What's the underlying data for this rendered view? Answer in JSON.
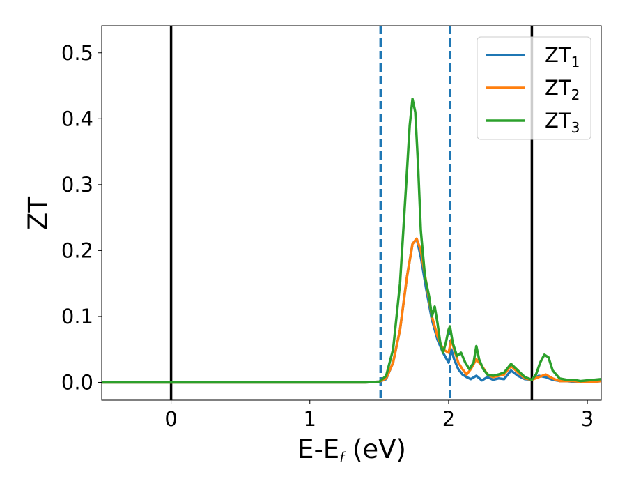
{
  "chart_data": {
    "type": "line",
    "xlabel": "E-E",
    "xlabel_subscript": "f",
    "xlabel_unit": " (eV)",
    "ylabel": "ZT",
    "xlim": [
      -0.5,
      3.1
    ],
    "ylim": [
      -0.027,
      0.541
    ],
    "xticks": [
      0,
      1,
      2,
      3
    ],
    "xtick_labels": [
      "0",
      "1",
      "2",
      "3"
    ],
    "yticks": [
      0.0,
      0.1,
      0.2,
      0.3,
      0.4,
      0.5
    ],
    "ytick_labels": [
      "0.0",
      "0.1",
      "0.2",
      "0.3",
      "0.4",
      "0.5"
    ],
    "grid": false,
    "legend_position": "top-right",
    "vlines": [
      {
        "x": 0.0,
        "style": "solid",
        "color": "#000000"
      },
      {
        "x": 2.6,
        "style": "solid",
        "color": "#000000"
      },
      {
        "x": 1.51,
        "style": "dashed",
        "color": "#1f77b4"
      },
      {
        "x": 2.01,
        "style": "dashed",
        "color": "#1f77b4"
      }
    ],
    "series": [
      {
        "name": "ZT",
        "name_subscript": "1",
        "color": "#1f77b4",
        "x": [
          -0.5,
          1.4,
          1.5,
          1.55,
          1.6,
          1.65,
          1.7,
          1.74,
          1.77,
          1.8,
          1.84,
          1.88,
          1.92,
          1.96,
          2.0,
          2.02,
          2.04,
          2.07,
          2.1,
          2.13,
          2.16,
          2.2,
          2.24,
          2.28,
          2.32,
          2.36,
          2.4,
          2.45,
          2.5,
          2.55,
          2.6,
          2.65,
          2.7,
          2.75,
          2.8,
          2.85,
          2.9,
          2.95,
          3.0,
          3.05,
          3.1
        ],
        "y": [
          0.0,
          0.0,
          0.001,
          0.005,
          0.03,
          0.08,
          0.16,
          0.21,
          0.218,
          0.19,
          0.14,
          0.095,
          0.065,
          0.045,
          0.03,
          0.05,
          0.035,
          0.02,
          0.012,
          0.008,
          0.005,
          0.01,
          0.003,
          0.008,
          0.004,
          0.006,
          0.005,
          0.018,
          0.01,
          0.005,
          0.004,
          0.01,
          0.008,
          0.004,
          0.002,
          0.002,
          0.001,
          0.001,
          0.001,
          0.001,
          0.002
        ]
      },
      {
        "name": "ZT",
        "name_subscript": "2",
        "color": "#ff7f0e",
        "x": [
          -0.5,
          1.4,
          1.5,
          1.55,
          1.6,
          1.65,
          1.7,
          1.74,
          1.77,
          1.8,
          1.84,
          1.88,
          1.92,
          1.96,
          2.0,
          2.02,
          2.04,
          2.07,
          2.1,
          2.13,
          2.16,
          2.2,
          2.24,
          2.28,
          2.32,
          2.36,
          2.4,
          2.45,
          2.5,
          2.55,
          2.6,
          2.65,
          2.7,
          2.75,
          2.8,
          2.85,
          2.9,
          2.95,
          3.0,
          3.05,
          3.1
        ],
        "y": [
          0.0,
          0.0,
          0.001,
          0.006,
          0.03,
          0.08,
          0.16,
          0.21,
          0.218,
          0.2,
          0.15,
          0.1,
          0.07,
          0.05,
          0.045,
          0.065,
          0.05,
          0.03,
          0.02,
          0.012,
          0.02,
          0.035,
          0.025,
          0.012,
          0.008,
          0.01,
          0.012,
          0.025,
          0.015,
          0.006,
          0.004,
          0.008,
          0.012,
          0.006,
          0.002,
          0.002,
          0.002,
          0.001,
          0.001,
          0.001,
          0.002
        ]
      },
      {
        "name": "ZT",
        "name_subscript": "3",
        "color": "#2ca02c",
        "x": [
          -0.5,
          1.4,
          1.5,
          1.55,
          1.6,
          1.65,
          1.7,
          1.72,
          1.74,
          1.76,
          1.78,
          1.8,
          1.83,
          1.86,
          1.88,
          1.9,
          1.92,
          1.94,
          1.96,
          1.98,
          2.0,
          2.01,
          2.03,
          2.06,
          2.09,
          2.12,
          2.15,
          2.18,
          2.2,
          2.22,
          2.25,
          2.28,
          2.32,
          2.36,
          2.4,
          2.45,
          2.5,
          2.55,
          2.6,
          2.63,
          2.66,
          2.69,
          2.72,
          2.75,
          2.8,
          2.85,
          2.9,
          2.95,
          3.0,
          3.05,
          3.1
        ],
        "y": [
          0.0,
          0.0,
          0.001,
          0.01,
          0.05,
          0.15,
          0.32,
          0.39,
          0.43,
          0.41,
          0.33,
          0.23,
          0.16,
          0.13,
          0.1,
          0.115,
          0.09,
          0.06,
          0.045,
          0.06,
          0.08,
          0.085,
          0.06,
          0.04,
          0.045,
          0.03,
          0.02,
          0.03,
          0.055,
          0.035,
          0.02,
          0.012,
          0.01,
          0.012,
          0.015,
          0.028,
          0.018,
          0.008,
          0.004,
          0.012,
          0.03,
          0.042,
          0.038,
          0.018,
          0.006,
          0.004,
          0.004,
          0.002,
          0.003,
          0.004,
          0.005
        ]
      }
    ]
  }
}
